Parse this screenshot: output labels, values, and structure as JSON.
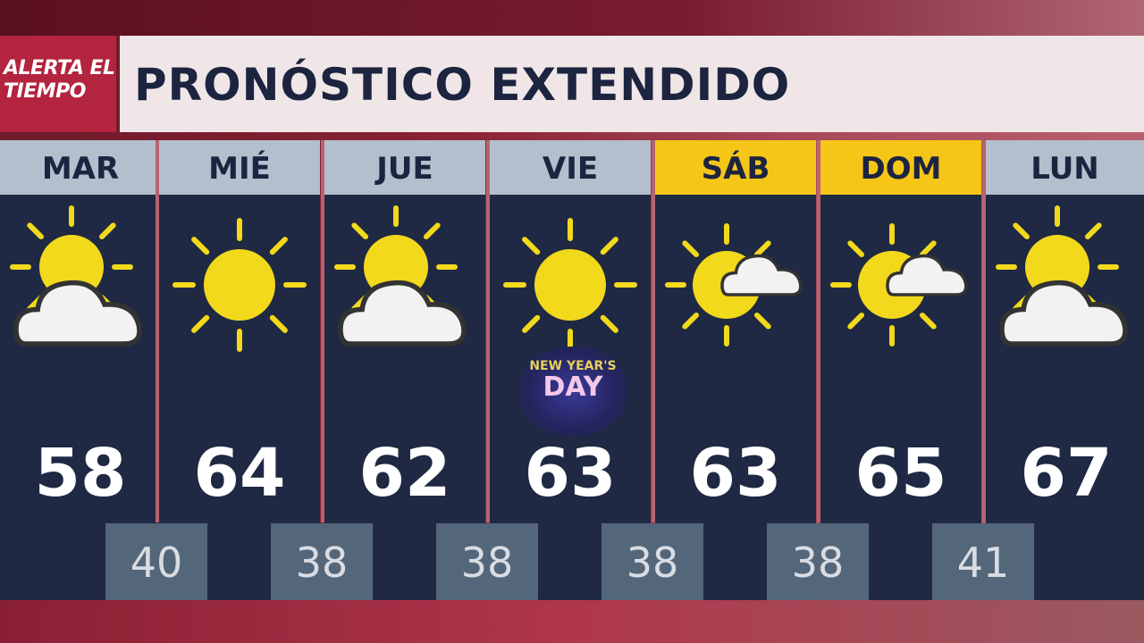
{
  "logo": {
    "line1": "ALERTA EL",
    "line2": "TIEMPO"
  },
  "title": "PRONÓSTICO EXTENDIDO",
  "colors": {
    "header": "#b3bfcd",
    "weekend": "#f5c518",
    "panel": "#1f2944",
    "low_box": "#54667a",
    "sun": "#f2d91c",
    "brand": "#b3243f"
  },
  "days": [
    {
      "label": "MAR",
      "high": "58",
      "icon": "partly-cloudy-icon",
      "weekend": false
    },
    {
      "label": "MIÉ",
      "high": "64",
      "icon": "sunny-icon",
      "weekend": false
    },
    {
      "label": "JUE",
      "high": "62",
      "icon": "partly-cloudy-icon",
      "weekend": false
    },
    {
      "label": "VIE",
      "high": "63",
      "icon": "sunny-icon",
      "weekend": false
    },
    {
      "label": "SÁB",
      "high": "63",
      "icon": "mostly-sunny-icon",
      "weekend": true
    },
    {
      "label": "DOM",
      "high": "65",
      "icon": "mostly-sunny-icon",
      "weekend": true
    },
    {
      "label": "LUN",
      "high": "67",
      "icon": "partly-cloudy-icon",
      "weekend": false
    }
  ],
  "lows": [
    "40",
    "38",
    "38",
    "38",
    "38",
    "41"
  ],
  "badge": {
    "line1": "NEW YEAR'S",
    "line2": "DAY"
  }
}
